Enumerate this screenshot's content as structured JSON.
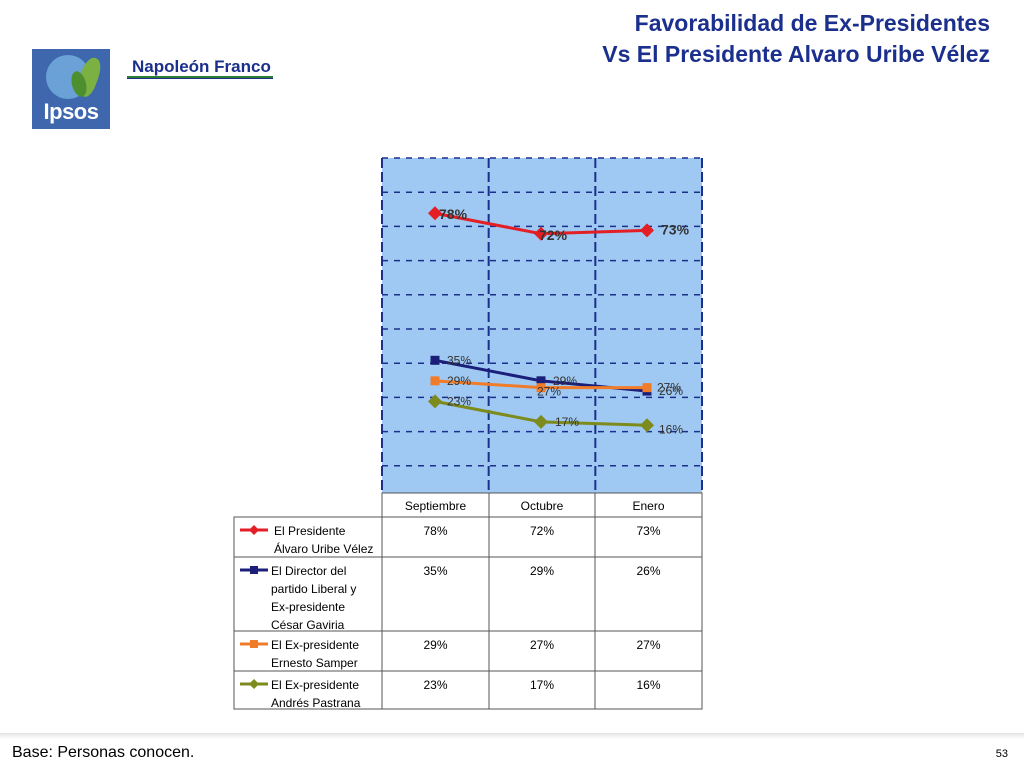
{
  "slide": {
    "title_line1": "Favorabilidad de Ex-Presidentes",
    "title_line2": "Vs El Presidente Alvaro Uribe Vélez",
    "logo_text": "Ipsos",
    "brand": "Napoleón Franco",
    "base_note": "Base: Personas conocen.",
    "page_number": "53"
  },
  "chart_data": {
    "type": "line",
    "categories": [
      "Septiembre",
      "Octubre",
      "Enero"
    ],
    "ylim": [
      0,
      100
    ],
    "grid": true,
    "series": [
      {
        "name": "El Presidente Álvaro Uribe Vélez",
        "label_lines": [
          "El Presidente",
          "Álvaro Uribe Vélez"
        ],
        "values": [
          78,
          72,
          73
        ],
        "labels": [
          "78%",
          "72%",
          "73%"
        ],
        "color": "#e31e24",
        "marker": "diamond"
      },
      {
        "name": "El Director del partido Liberal y Ex-presidente César Gaviria",
        "label_lines": [
          "El Director del",
          "partido Liberal y",
          "Ex-presidente",
          "César Gaviria"
        ],
        "values": [
          35,
          29,
          26
        ],
        "labels": [
          "35%",
          "29%",
          "26%"
        ],
        "color": "#1b1f7a",
        "marker": "square"
      },
      {
        "name": "El Ex-presidente Ernesto Samper",
        "label_lines": [
          "El Ex-presidente",
          "Ernesto Samper"
        ],
        "values": [
          29,
          27,
          27
        ],
        "labels": [
          "29%",
          "27%",
          "27%"
        ],
        "color": "#f07c2a",
        "marker": "square"
      },
      {
        "name": "El Ex-presidente Andrés Pastrana",
        "label_lines": [
          "El Ex-presidente",
          "Andrés Pastrana"
        ],
        "values": [
          23,
          17,
          16
        ],
        "labels": [
          "23%",
          "17%",
          "16%"
        ],
        "color": "#7d8a1c",
        "marker": "diamond"
      }
    ]
  }
}
